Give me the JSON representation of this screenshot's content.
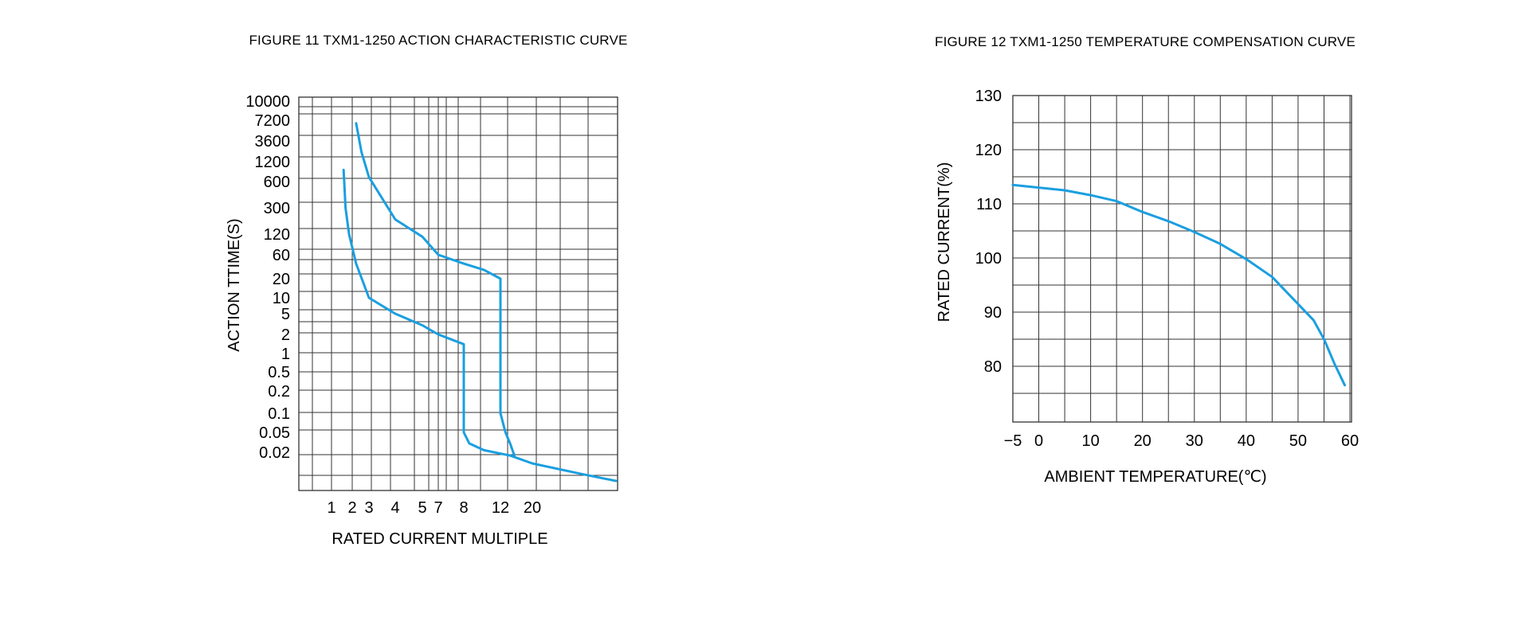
{
  "chart_data": [
    {
      "type": "line",
      "title": "FIGURE 11 TXM1-1250 ACTION CHARACTERISTIC CURVE",
      "xlabel": "RATED CURRENT MULTIPLE",
      "ylabel": "ACTION TTIME(S)",
      "x_tick_labels": [
        "1",
        "2",
        "3",
        "4",
        "5",
        "7",
        "8",
        "12",
        "20"
      ],
      "y_tick_labels": [
        "10000",
        "7200",
        "3600",
        "1200",
        "600",
        "300",
        "120",
        "60",
        "20",
        "10",
        "5",
        "2",
        "1",
        "0.5",
        "0.2",
        "0.1",
        "0.05",
        "0.02"
      ],
      "grid": true,
      "line_color": "#1a9fe0",
      "series": [
        {
          "values_note": "lower band",
          "points": [
            [
              1.5,
              900
            ],
            [
              1.6,
              300
            ],
            [
              1.8,
              120
            ],
            [
              2.2,
              40
            ],
            [
              3,
              10
            ],
            [
              4,
              5
            ],
            [
              5,
              3
            ],
            [
              6,
              2.4
            ],
            [
              7,
              2
            ],
            [
              8,
              1.4
            ],
            [
              8,
              0.05
            ],
            [
              8.5,
              0.03
            ],
            [
              10,
              0.022
            ],
            [
              14,
              0.018
            ],
            [
              20,
              0.014
            ],
            [
              30,
              0.01
            ],
            [
              40,
              0.008
            ]
          ]
        },
        {
          "values_note": "upper band",
          "points": [
            [
              2.2,
              6500
            ],
            [
              2.5,
              2000
            ],
            [
              3,
              700
            ],
            [
              4,
              200
            ],
            [
              5,
              110
            ],
            [
              7,
              60
            ],
            [
              8,
              40
            ],
            [
              10,
              30
            ],
            [
              12,
              20
            ],
            [
              12,
              0.1
            ],
            [
              13,
              0.05
            ],
            [
              14,
              0.03
            ],
            [
              15,
              0.018
            ]
          ]
        }
      ]
    },
    {
      "type": "line",
      "title": "FIGURE 12 TXM1-1250 TEMPERATURE COMPENSATION CURVE",
      "xlabel": "AMBIENT TEMPERATURE(℃)",
      "ylabel": "RATED CURRENT(%)",
      "x_tick_labels": [
        "−5",
        "0",
        "10",
        "20",
        "30",
        "40",
        "50",
        "60"
      ],
      "y_tick_labels": [
        "130",
        "120",
        "110",
        "100",
        "90",
        "80"
      ],
      "xlim": [
        -5,
        60
      ],
      "grid": true,
      "line_color": "#1a9fe0",
      "series": [
        {
          "x": [
            -5,
            0,
            5,
            10,
            15,
            20,
            25,
            30,
            35,
            40,
            45,
            50,
            53,
            55,
            57,
            59
          ],
          "values": [
            113.5,
            113,
            112.5,
            111.6,
            110.5,
            108.5,
            106.8,
            104.8,
            102.6,
            99.8,
            96.5,
            91.5,
            88.5,
            85,
            80.5,
            76.5
          ]
        }
      ]
    }
  ]
}
